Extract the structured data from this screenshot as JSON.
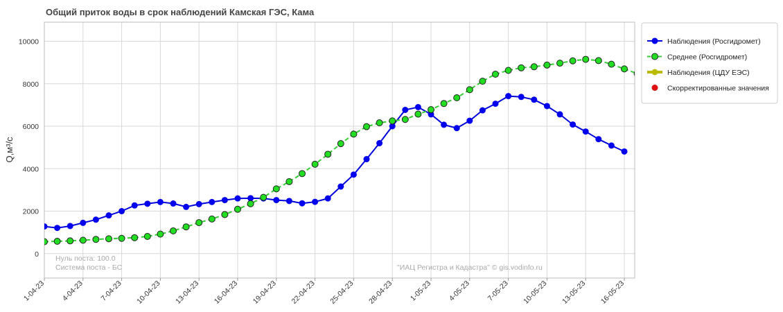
{
  "chart_data": {
    "type": "line",
    "title": "Общий приток воды в срок наблюдений Камская ГЭС,  Кама",
    "ylabel": "Q,м³/с",
    "xlabel": "",
    "ylim": [
      -1150,
      10900
    ],
    "yticks": [
      0,
      2000,
      4000,
      6000,
      8000,
      10000
    ],
    "grid": true,
    "legend_position": "right",
    "x_start": "1-04-23",
    "x_end": "16-05-23",
    "xticks": [
      "1-04-23",
      "4-04-23",
      "7-04-23",
      "10-04-23",
      "13-04-23",
      "16-04-23",
      "19-04-23",
      "22-04-23",
      "25-04-23",
      "28-04-23",
      "1-05-23",
      "4-05-23",
      "7-05-23",
      "10-05-23",
      "13-05-23",
      "16-05-23"
    ],
    "notes": {
      "zero": "Нуль поста: 100.0",
      "system": "Система поста - БС",
      "credit": "\"ИАЦ Регистра и Кадастра\" © gis.vodinfo.ru"
    },
    "series": [
      {
        "name": "Наблюдения (Росгидромет)",
        "color": "#0000dd",
        "style": "solid",
        "marker_fill": "#0000ee",
        "values": [
          1280,
          1210,
          1300,
          1450,
          1600,
          1800,
          2000,
          2270,
          2350,
          2430,
          2360,
          2200,
          2330,
          2430,
          2520,
          2600,
          2610,
          2600,
          2520,
          2480,
          2370,
          2440,
          2600,
          3160,
          3720,
          4450,
          5200,
          6000,
          6770,
          6900,
          6560,
          6070,
          5910,
          6260,
          6750,
          7060,
          7420,
          7380,
          7250,
          6950,
          6560,
          6080,
          5750,
          5390,
          5090,
          4810
        ]
      },
      {
        "name": "Среднее (Росгидромет)",
        "color": "#33cc33",
        "style": "dashed",
        "marker_fill": "#22dd22",
        "values": [
          560,
          580,
          600,
          630,
          670,
          700,
          720,
          750,
          810,
          920,
          1070,
          1260,
          1460,
          1630,
          1840,
          2090,
          2350,
          2650,
          3050,
          3390,
          3770,
          4210,
          4680,
          5180,
          5630,
          5980,
          6160,
          6250,
          6320,
          6570,
          6780,
          7070,
          7340,
          7720,
          8120,
          8450,
          8630,
          8750,
          8800,
          8880,
          8970,
          9080,
          9150,
          9090,
          8920,
          8700,
          8480
        ]
      },
      {
        "name": "Наблюдения (ЦДУ ЕЭС)",
        "color": "#bbbb00",
        "style": "solid",
        "marker_fill": "#bbbb00",
        "values": []
      },
      {
        "name": "Скорректированные значения",
        "color": "#dd1111",
        "style": "marker",
        "marker_fill": "#dd1111",
        "values": []
      }
    ]
  }
}
